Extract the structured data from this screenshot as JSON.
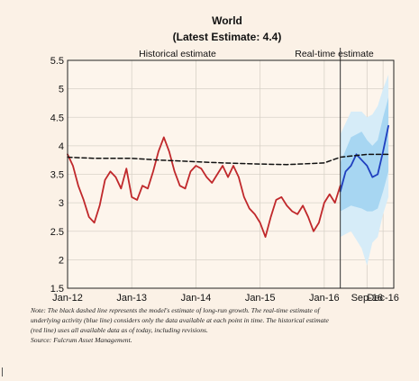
{
  "chart_data": {
    "type": "line",
    "title": "World",
    "subtitle": "(Latest Estimate: 4.4)",
    "xlabel": "",
    "ylabel": "",
    "ylim": [
      1.5,
      5.5
    ],
    "y_ticks": [
      "1.5",
      "2",
      "2.5",
      "3",
      "3.5",
      "4",
      "4.5",
      "5",
      "5.5"
    ],
    "x_ticks": [
      {
        "label": "Jan-12",
        "date": "2012-01"
      },
      {
        "label": "Jan-13",
        "date": "2013-01"
      },
      {
        "label": "Jan-14",
        "date": "2014-01"
      },
      {
        "label": "Jan-15",
        "date": "2015-01"
      },
      {
        "label": "Jan-16",
        "date": "2016-01"
      },
      {
        "label": "Sep-16",
        "date": "2016-09"
      },
      {
        "label": "Dec-16",
        "date": "2016-12"
      }
    ],
    "x_range": [
      "2012-01",
      "2017-02"
    ],
    "grid": true,
    "split_date": "2016-04",
    "region_labels": {
      "left": "Historical estimate",
      "right": "Real-time estimate"
    },
    "series": [
      {
        "color": "#c0282b",
        "points": [
          [
            "2012-01",
            3.85
          ],
          [
            "2012-02",
            3.65
          ],
          [
            "2012-03",
            3.3
          ],
          [
            "2012-04",
            3.05
          ],
          [
            "2012-05",
            2.75
          ],
          [
            "2012-06",
            2.65
          ],
          [
            "2012-07",
            2.95
          ],
          [
            "2012-08",
            3.4
          ],
          [
            "2012-09",
            3.55
          ],
          [
            "2012-10",
            3.45
          ],
          [
            "2012-11",
            3.25
          ],
          [
            "2012-12",
            3.6
          ],
          [
            "2013-01",
            3.1
          ],
          [
            "2013-02",
            3.05
          ],
          [
            "2013-03",
            3.3
          ],
          [
            "2013-04",
            3.25
          ],
          [
            "2013-05",
            3.55
          ],
          [
            "2013-06",
            3.9
          ],
          [
            "2013-07",
            4.15
          ],
          [
            "2013-08",
            3.9
          ],
          [
            "2013-09",
            3.55
          ],
          [
            "2013-10",
            3.3
          ],
          [
            "2013-11",
            3.25
          ],
          [
            "2013-12",
            3.55
          ],
          [
            "2014-01",
            3.65
          ],
          [
            "2014-02",
            3.6
          ],
          [
            "2014-03",
            3.45
          ],
          [
            "2014-04",
            3.35
          ],
          [
            "2014-05",
            3.5
          ],
          [
            "2014-06",
            3.65
          ],
          [
            "2014-07",
            3.45
          ],
          [
            "2014-08",
            3.65
          ],
          [
            "2014-09",
            3.45
          ],
          [
            "2014-10",
            3.1
          ],
          [
            "2014-11",
            2.9
          ],
          [
            "2014-12",
            2.8
          ],
          [
            "2015-01",
            2.65
          ],
          [
            "2015-02",
            2.4
          ],
          [
            "2015-03",
            2.75
          ],
          [
            "2015-04",
            3.05
          ],
          [
            "2015-05",
            3.1
          ],
          [
            "2015-06",
            2.95
          ],
          [
            "2015-07",
            2.85
          ],
          [
            "2015-08",
            2.8
          ],
          [
            "2015-09",
            2.95
          ],
          [
            "2015-10",
            2.75
          ],
          [
            "2015-11",
            2.5
          ],
          [
            "2015-12",
            2.65
          ],
          [
            "2016-01",
            3.0
          ],
          [
            "2016-02",
            3.15
          ],
          [
            "2016-03",
            3.0
          ],
          [
            "2016-04",
            3.3
          ]
        ]
      },
      {
        "color": "#1f3fbf",
        "points": [
          [
            "2016-04",
            3.2
          ],
          [
            "2016-05",
            3.55
          ],
          [
            "2016-06",
            3.65
          ],
          [
            "2016-07",
            3.85
          ],
          [
            "2016-08",
            3.75
          ],
          [
            "2016-09",
            3.65
          ],
          [
            "2016-10",
            3.45
          ],
          [
            "2016-11",
            3.5
          ],
          [
            "2016-12",
            3.9
          ],
          [
            "2017-01",
            4.35
          ]
        ]
      },
      {
        "color": "#111111",
        "dashed": true,
        "points": [
          [
            "2012-01",
            3.8
          ],
          [
            "2012-06",
            3.78
          ],
          [
            "2013-01",
            3.78
          ],
          [
            "2013-06",
            3.75
          ],
          [
            "2014-01",
            3.72
          ],
          [
            "2014-06",
            3.7
          ],
          [
            "2015-01",
            3.68
          ],
          [
            "2015-06",
            3.67
          ],
          [
            "2016-01",
            3.7
          ],
          [
            "2016-04",
            3.8
          ],
          [
            "2016-09",
            3.85
          ],
          [
            "2017-01",
            3.85
          ]
        ]
      }
    ],
    "bands": [
      {
        "color": "#d6ecf8",
        "lower": [
          [
            "2016-04",
            2.4
          ],
          [
            "2016-06",
            2.5
          ],
          [
            "2016-08",
            2.2
          ],
          [
            "2016-09",
            1.9
          ],
          [
            "2016-10",
            2.3
          ],
          [
            "2016-11",
            2.4
          ],
          [
            "2016-12",
            2.8
          ],
          [
            "2017-01",
            3.1
          ]
        ],
        "upper": [
          [
            "2016-04",
            4.2
          ],
          [
            "2016-06",
            4.6
          ],
          [
            "2016-08",
            4.6
          ],
          [
            "2016-09",
            4.5
          ],
          [
            "2016-10",
            4.55
          ],
          [
            "2016-11",
            4.7
          ],
          [
            "2016-12",
            5.0
          ],
          [
            "2017-01",
            5.25
          ]
        ]
      },
      {
        "color": "#a7d6f2",
        "lower": [
          [
            "2016-04",
            2.85
          ],
          [
            "2016-06",
            2.95
          ],
          [
            "2016-08",
            2.9
          ],
          [
            "2016-09",
            2.85
          ],
          [
            "2016-10",
            2.85
          ],
          [
            "2016-11",
            2.9
          ],
          [
            "2016-12",
            3.2
          ],
          [
            "2017-01",
            3.55
          ]
        ],
        "upper": [
          [
            "2016-04",
            3.7
          ],
          [
            "2016-06",
            4.15
          ],
          [
            "2016-08",
            4.25
          ],
          [
            "2016-09",
            4.1
          ],
          [
            "2016-10",
            4.0
          ],
          [
            "2016-11",
            4.1
          ],
          [
            "2016-12",
            4.5
          ],
          [
            "2017-01",
            4.85
          ]
        ]
      }
    ],
    "note": [
      "Note: The black dashed line represents the model's estimate of long-run growth. The real-time estimate of",
      "underlying activity (blue line) considers only the data available at each point in time. The historical estimate",
      "(red line) uses all available data as of today, including revisions.",
      "Source: Fulcrum Asset Management."
    ]
  }
}
